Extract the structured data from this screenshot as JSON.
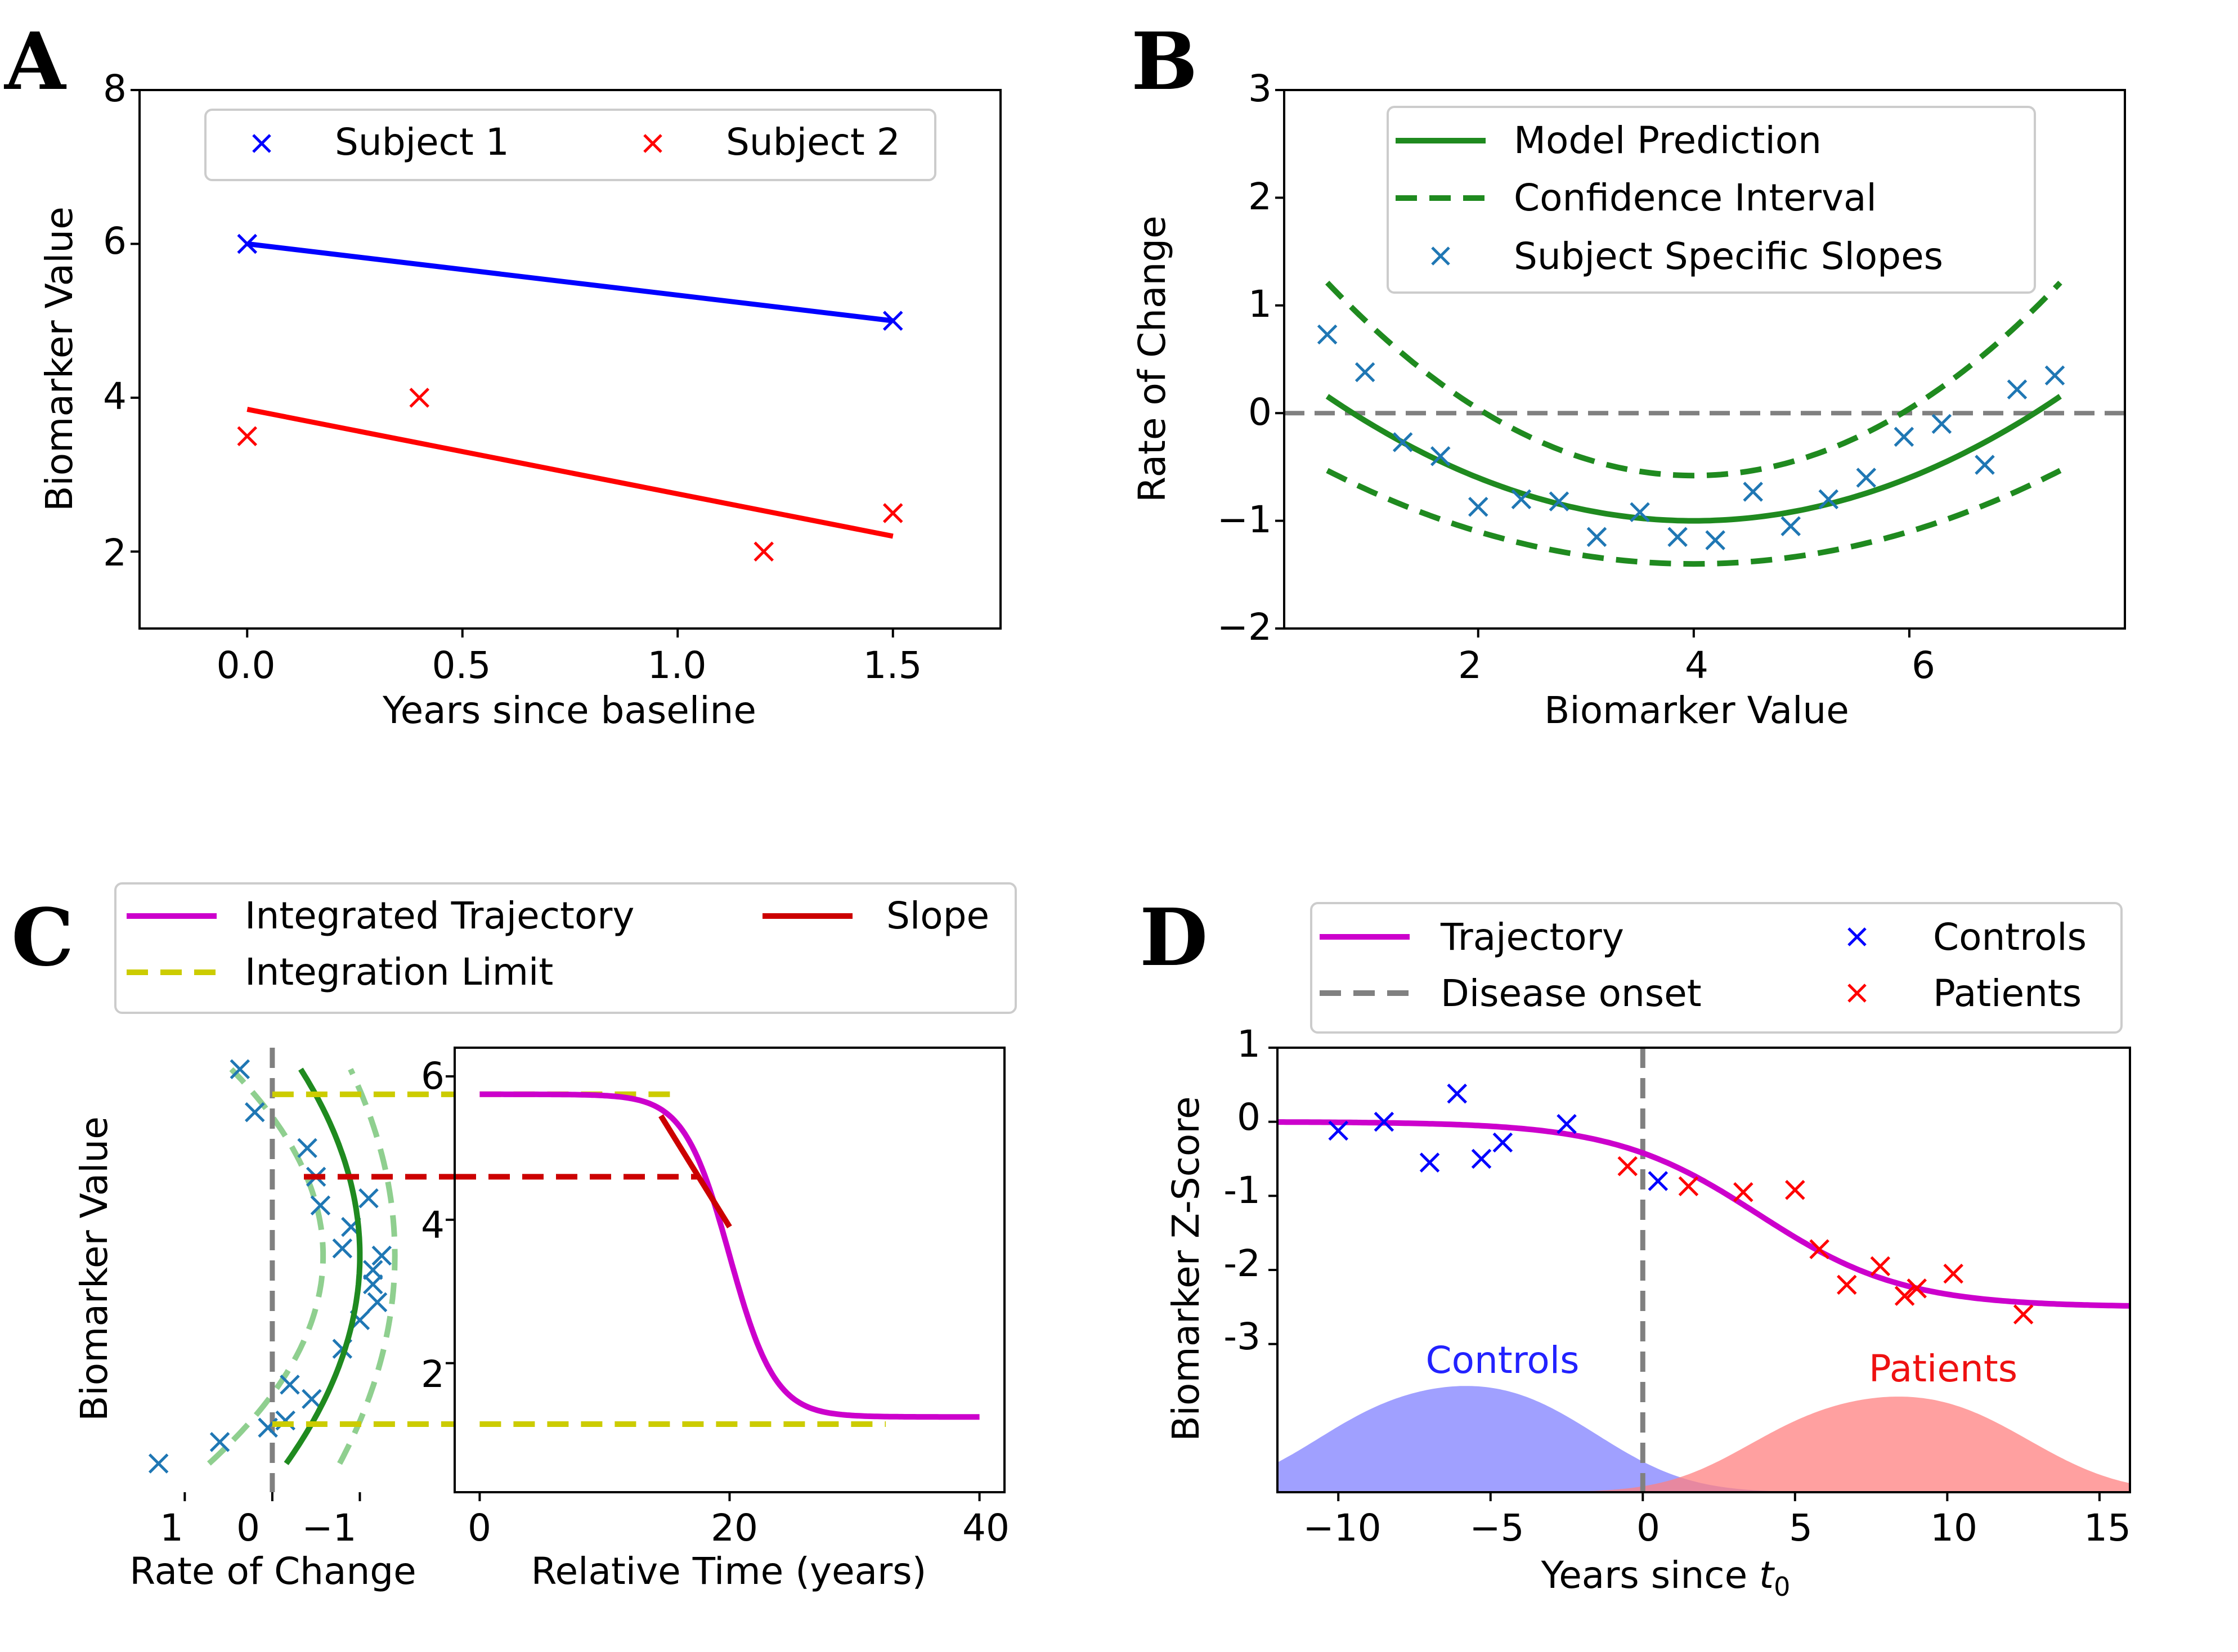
{
  "colors": {
    "blue": "#0000ff",
    "red": "#ff0000",
    "green": "#1f8a1f",
    "marker_blue": "#1f77b4",
    "magenta": "#cc00cc",
    "yellow": "#cccc00",
    "darkred": "#cc0000",
    "gray": "#808080",
    "lightgreen": "#8fcf8f",
    "fill_blue": "#8080ff",
    "fill_red": "#ff8080"
  },
  "chart_data": [
    {
      "panel": "A",
      "type": "line",
      "xlabel": "Years since baseline",
      "ylabel": "Biomarker Value",
      "xlim": [
        -0.25,
        1.75
      ],
      "ylim": [
        1,
        8
      ],
      "xticks": [
        0.0,
        0.5,
        1.0,
        1.5
      ],
      "xtick_labels": [
        "0.0",
        "0.5",
        "1.0",
        "1.5"
      ],
      "yticks": [
        2,
        4,
        6,
        8
      ],
      "ytick_labels": [
        "2",
        "4",
        "6",
        "8"
      ],
      "legend_position": "top-center",
      "series": [
        {
          "name": "Subject 1",
          "points": [
            [
              0,
              6
            ],
            [
              1.5,
              5
            ]
          ],
          "line": [
            [
              0,
              6
            ],
            [
              1.5,
              5
            ]
          ]
        },
        {
          "name": "Subject 2",
          "points": [
            [
              0,
              3.5
            ],
            [
              0.4,
              4
            ],
            [
              1.2,
              2
            ],
            [
              1.5,
              2.5
            ]
          ],
          "line": [
            [
              0,
              3.85
            ],
            [
              1.5,
              2.2
            ]
          ]
        }
      ]
    },
    {
      "panel": "B",
      "type": "line",
      "xlabel": "Biomarker Value",
      "ylabel": "Rate of Change",
      "xlim": [
        0.2,
        8.0
      ],
      "ylim": [
        -2,
        3
      ],
      "xticks": [
        2,
        4,
        6
      ],
      "xtick_labels": [
        "2",
        "4",
        "6"
      ],
      "yticks": [
        -2,
        -1,
        0,
        1,
        2,
        3
      ],
      "ytick_labels": [
        "−2",
        "−1",
        "0",
        "1",
        "2",
        "3"
      ],
      "reference_line_y": 0,
      "legend_position": "top-center",
      "series": [
        {
          "name": "Model Prediction",
          "quadratic": {
            "vertex_x": 4.0,
            "vertex_y": -1.0,
            "a": 0.1
          },
          "x_range": [
            0.6,
            7.4
          ]
        },
        {
          "name": "Confidence Interval",
          "upper": {
            "vertex_x": 4.0,
            "vertex_y": -0.58,
            "a": 0.155
          },
          "lower": {
            "vertex_x": 4.0,
            "vertex_y": -1.4,
            "a": 0.075
          },
          "x_range": [
            0.6,
            7.4
          ]
        },
        {
          "name": "Subject Specific Slopes",
          "points": [
            [
              0.6,
              0.73
            ],
            [
              0.95,
              0.38
            ],
            [
              1.3,
              -0.27
            ],
            [
              1.65,
              -0.4
            ],
            [
              2.0,
              -0.87
            ],
            [
              2.4,
              -0.8
            ],
            [
              2.75,
              -0.82
            ],
            [
              3.1,
              -1.15
            ],
            [
              3.5,
              -0.92
            ],
            [
              3.85,
              -1.15
            ],
            [
              4.2,
              -1.18
            ],
            [
              4.55,
              -0.73
            ],
            [
              4.9,
              -1.05
            ],
            [
              5.25,
              -0.8
            ],
            [
              5.6,
              -0.6
            ],
            [
              5.95,
              -0.22
            ],
            [
              6.3,
              -0.1
            ],
            [
              6.7,
              -0.48
            ],
            [
              7.0,
              0.22
            ],
            [
              7.35,
              0.35
            ]
          ]
        }
      ]
    },
    {
      "panel": "C-left",
      "type": "line",
      "xlabel": "Rate of Change",
      "ylabel": "Biomarker Value",
      "xlim": [
        1.6,
        -2.0
      ],
      "ylim": [
        0.2,
        6.4
      ],
      "xticks": [
        1,
        0,
        -1
      ],
      "xtick_labels": [
        "1",
        "0",
        "−1"
      ],
      "yticks": [],
      "series": [
        {
          "name": "Model Prediction",
          "quadratic": {
            "vertex_y": 3.5,
            "vertex_x": -1.0,
            "a": 0.1
          },
          "y_range": [
            0.6,
            6.1
          ]
        },
        {
          "name": "Confidence Interval",
          "upper": {
            "vertex_y": 3.5,
            "vertex_x": -0.58,
            "a": 0.155
          },
          "lower": {
            "vertex_y": 3.5,
            "vertex_x": -1.4,
            "a": 0.075
          },
          "y_range": [
            0.6,
            6.1
          ]
        },
        {
          "name": "Subject Specific Slopes",
          "points": [
            [
              1.3,
              0.6
            ],
            [
              0.6,
              0.9
            ],
            [
              0.37,
              6.1
            ],
            [
              0.2,
              5.5
            ],
            [
              0.05,
              1.1
            ],
            [
              -0.15,
              1.2
            ],
            [
              -0.4,
              5.0
            ],
            [
              -0.2,
              1.7
            ],
            [
              -0.45,
              1.5
            ],
            [
              -0.5,
              4.6
            ],
            [
              -0.55,
              4.2
            ],
            [
              -0.9,
              3.9
            ],
            [
              -0.8,
              2.2
            ],
            [
              -1.0,
              2.6
            ],
            [
              -0.8,
              3.6
            ],
            [
              -1.15,
              3.1
            ],
            [
              -1.15,
              3.3
            ],
            [
              -1.2,
              2.85
            ],
            [
              -1.1,
              4.3
            ],
            [
              -1.25,
              3.5
            ]
          ]
        }
      ],
      "hlines": [
        {
          "name": "Integration Limit",
          "y": 5.75
        },
        {
          "name": "Integration Limit",
          "y": 1.15
        },
        {
          "name": "Slope",
          "y": 4.6
        }
      ],
      "reference_line_x": 0
    },
    {
      "panel": "C-right",
      "type": "line",
      "xlabel": "Relative Time (years)",
      "xlim": [
        -2,
        42
      ],
      "ylim": [
        0.2,
        6.4
      ],
      "xticks": [
        0,
        20,
        40
      ],
      "xtick_labels": [
        "0",
        "20",
        "40"
      ],
      "yticks": [
        2,
        4,
        6
      ],
      "ytick_labels": [
        "2",
        "4",
        "6"
      ],
      "legend_position": "top",
      "series": [
        {
          "name": "Integrated Trajectory",
          "sigmoid": {
            "high": 5.75,
            "low": 1.25,
            "mid": 20,
            "k": 0.55
          },
          "x_range": [
            0,
            40
          ]
        },
        {
          "name": "Integration Limit",
          "segments": [
            [
              [
                0,
                5.75
              ],
              [
                15.5,
                5.75
              ]
            ],
            [
              [
                0,
                1.15
              ],
              [
                32.5,
                1.15
              ]
            ]
          ]
        },
        {
          "name": "Slope",
          "tangent": [
            [
              14.5,
              5.45
            ],
            [
              20,
              3.9
            ]
          ],
          "hline": [
            [
              -2,
              4.6
            ],
            [
              17.5,
              4.6
            ]
          ]
        }
      ],
      "legend": [
        "Integrated Trajectory",
        "Slope",
        "Integration Limit"
      ]
    },
    {
      "panel": "D",
      "type": "scatter",
      "xlabel": "Years since t",
      "xlabel_subscript": "0",
      "ylabel": "Biomarker Z-Score",
      "xlim": [
        -12,
        16
      ],
      "ylim": [
        -5.0,
        1.0
      ],
      "xticks": [
        -10,
        -5,
        0,
        5,
        10,
        15
      ],
      "xtick_labels": [
        "−10",
        "−5",
        "0",
        "5",
        "10",
        "15"
      ],
      "yticks": [
        1,
        0,
        -1,
        -2,
        -3
      ],
      "ytick_labels": [
        "1",
        "0",
        "-1",
        "-2",
        "-3"
      ],
      "reference_line_x": 0,
      "legend_position": "top",
      "annotations": [
        "Controls",
        "Patients"
      ],
      "series": [
        {
          "name": "Trajectory",
          "sigmoid": {
            "high": 0.0,
            "low": -2.5,
            "mid": 3.8,
            "k": 0.42
          },
          "x_range": [
            -12,
            16
          ]
        },
        {
          "name": "Controls",
          "points": [
            [
              -10,
              -0.12
            ],
            [
              -8.5,
              0.0
            ],
            [
              -7,
              -0.55
            ],
            [
              -6.1,
              0.38
            ],
            [
              -5.3,
              -0.5
            ],
            [
              -4.6,
              -0.28
            ],
            [
              -2.5,
              -0.03
            ],
            [
              0.5,
              -0.8
            ]
          ]
        },
        {
          "name": "Patients",
          "points": [
            [
              -0.5,
              -0.6
            ],
            [
              1.5,
              -0.87
            ],
            [
              3.3,
              -0.95
            ],
            [
              5.0,
              -0.92
            ],
            [
              5.8,
              -1.72
            ],
            [
              6.7,
              -2.2
            ],
            [
              7.8,
              -1.95
            ],
            [
              8.6,
              -2.35
            ],
            [
              9.0,
              -2.25
            ],
            [
              10.2,
              -2.05
            ],
            [
              12.5,
              -2.6
            ]
          ]
        }
      ],
      "densities": [
        {
          "name": "Controls",
          "center": -6.2,
          "peak": 1.0
        },
        {
          "name": "Patients",
          "center": 8.0,
          "peak": 0.9
        }
      ]
    }
  ],
  "panels": {
    "A": {
      "letter": "A",
      "legend": {
        "s1": "Subject 1",
        "s2": "Subject 2"
      },
      "xticks": [
        "0.0",
        "0.5",
        "1.0",
        "1.5"
      ],
      "yticks": [
        "2",
        "4",
        "6",
        "8"
      ],
      "xlabel": "Years since baseline",
      "ylabel": "Biomarker Value"
    },
    "B": {
      "letter": "B",
      "legend": {
        "model": "Model Prediction",
        "ci": "Confidence Interval",
        "slopes": "Subject Specific Slopes"
      },
      "xticks": [
        "2",
        "4",
        "6"
      ],
      "yticks": [
        "3",
        "2",
        "1",
        "0",
        "−1",
        "−2"
      ],
      "xlabel": "Biomarker Value",
      "ylabel": "Rate of Change"
    },
    "C": {
      "letter": "C",
      "legend": {
        "traj": "Integrated Trajectory",
        "slope": "Slope",
        "limit": "Integration Limit"
      },
      "left_xticks": [
        "1",
        "0",
        "−1"
      ],
      "right_xticks": [
        "0",
        "20",
        "40"
      ],
      "right_yticks": [
        "6",
        "4",
        "2"
      ],
      "left_xlabel": "Rate of Change",
      "right_xlabel": "Relative Time (years)",
      "ylabel": "Biomarker Value"
    },
    "D": {
      "letter": "D",
      "legend": {
        "traj": "Trajectory",
        "onset": "Disease onset",
        "controls": "Controls",
        "patients": "Patients"
      },
      "xticks": [
        "−10",
        "−5",
        "0",
        "5",
        "10",
        "15"
      ],
      "yticks": [
        "1",
        "0",
        "-1",
        "-2",
        "-3"
      ],
      "xlabel": "Years since ",
      "xlabel_var": "t",
      "xlabel_sub": "0",
      "ylabel": "Biomarker Z-Score",
      "controls_label": "Controls",
      "patients_label": "Patients"
    }
  }
}
